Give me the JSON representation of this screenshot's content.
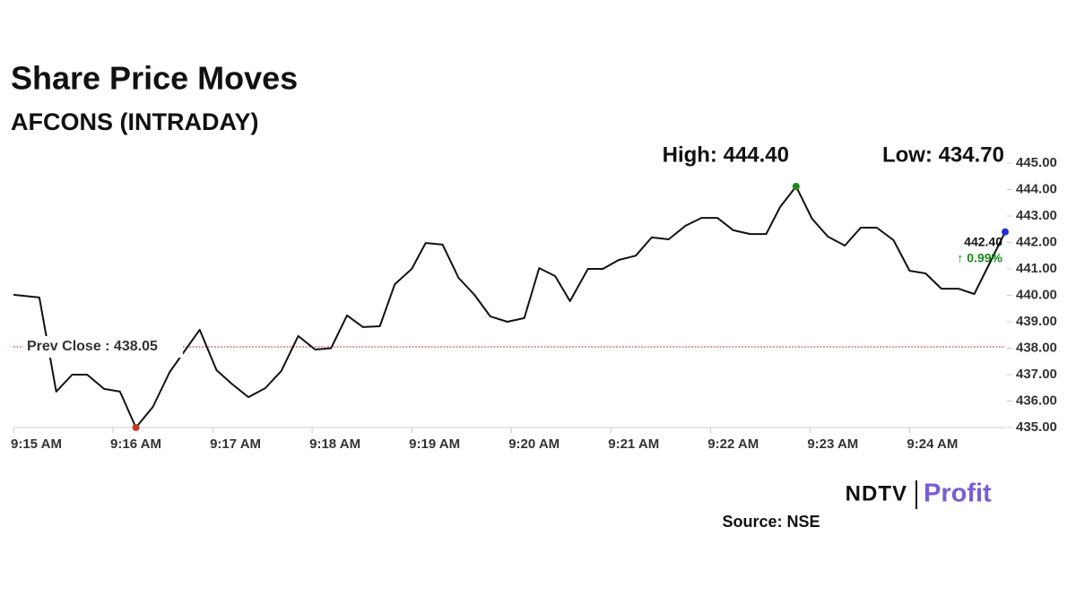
{
  "chart_data": {
    "type": "line",
    "title": "Share Price Moves",
    "subtitle": "AFCONS (INTRADAY)",
    "high_label": "High: 444.40",
    "low_label": "Low: 434.70",
    "prev_close": {
      "label": "Prev Close : 438.05",
      "value": 438.05,
      "color": "#c0392b"
    },
    "last_label": "442.40",
    "change_label": "↑ 0.99%",
    "source": "Source: NSE",
    "logo": [
      "NDTV",
      "Profit"
    ],
    "x": [
      0,
      0.26,
      0.43,
      0.59,
      0.74,
      0.91,
      1.07,
      1.23,
      1.4,
      1.57,
      1.87,
      2.04,
      2.2,
      2.36,
      2.53,
      2.69,
      2.86,
      3.03,
      3.19,
      3.35,
      3.51,
      3.68,
      3.83,
      4.0,
      4.14,
      4.31,
      4.47,
      4.63,
      4.79,
      4.96,
      5.13,
      5.28,
      5.44,
      5.59,
      5.77,
      5.92,
      6.08,
      6.25,
      6.41,
      6.58,
      6.75,
      6.91,
      7.07,
      7.23,
      7.4,
      7.56,
      7.7,
      7.86,
      8.02,
      8.18,
      8.35,
      8.51,
      8.67,
      8.84,
      9.0,
      9.16,
      9.32,
      9.49,
      9.65,
      9.82,
      9.96
    ],
    "series": [
      {
        "name": "AFCONS",
        "color": "#111111",
        "values": [
          440.02,
          439.92,
          436.36,
          437.0,
          437.0,
          436.46,
          436.36,
          435.0,
          435.78,
          437.1,
          438.7,
          437.17,
          436.63,
          436.15,
          436.49,
          437.14,
          438.46,
          437.95,
          438.0,
          439.24,
          438.8,
          438.83,
          440.42,
          441.0,
          441.98,
          441.92,
          440.66,
          440.02,
          439.2,
          439.0,
          439.14,
          441.03,
          440.73,
          439.78,
          441.0,
          441.0,
          441.34,
          441.5,
          442.19,
          442.12,
          442.63,
          442.93,
          442.93,
          442.46,
          442.32,
          442.32,
          443.34,
          444.12,
          442.9,
          442.22,
          441.88,
          442.56,
          442.56,
          442.08,
          440.93,
          440.83,
          440.25,
          440.25,
          440.05,
          441.34,
          442.4
        ]
      }
    ],
    "markers": [
      {
        "index": 7,
        "color": "#c0392b"
      },
      {
        "index": 47,
        "color": "#1a8a1a"
      },
      {
        "index": 60,
        "color": "#1f2fd0"
      }
    ],
    "xlim": [
      0,
      9.96
    ],
    "xticks": [
      {
        "value": 0,
        "label": "9:15 AM"
      },
      {
        "value": 1,
        "label": "9:16 AM"
      },
      {
        "value": 2,
        "label": "9:17 AM"
      },
      {
        "value": 3,
        "label": "9:18 AM"
      },
      {
        "value": 4,
        "label": "9:19 AM"
      },
      {
        "value": 5,
        "label": "9:20 AM"
      },
      {
        "value": 6,
        "label": "9:21 AM"
      },
      {
        "value": 7,
        "label": "9:22 AM"
      },
      {
        "value": 8,
        "label": "9:23 AM"
      },
      {
        "value": 9,
        "label": "9:24 AM"
      }
    ],
    "ylim": [
      435,
      445
    ],
    "yticks": [
      {
        "value": 435,
        "label": "435.00"
      },
      {
        "value": 436,
        "label": "436.00"
      },
      {
        "value": 437,
        "label": "437.00"
      },
      {
        "value": 438,
        "label": "438.00"
      },
      {
        "value": 439,
        "label": "439.00"
      },
      {
        "value": 440,
        "label": "440.00"
      },
      {
        "value": 441,
        "label": "441.00"
      },
      {
        "value": 442,
        "label": "442.00"
      },
      {
        "value": 443,
        "label": "443.00"
      },
      {
        "value": 444,
        "label": "444.00"
      },
      {
        "value": 445,
        "label": "445.00"
      }
    ],
    "grid": false
  }
}
